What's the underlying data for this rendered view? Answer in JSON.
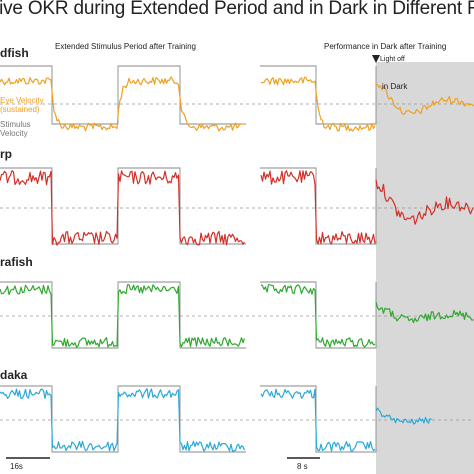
{
  "title": "tive OKR during Extended Period and in Dark in Different Fish Sp",
  "headers": {
    "extended": "Extended Stimulus Period after Training",
    "dark_perf": "Performance in Dark after Training",
    "light_off": "Light off",
    "in_dark": "in Dark"
  },
  "legend": {
    "eye_velocity": [
      "Eye Velocity",
      "(sustained)"
    ],
    "stimulus_velocity": [
      "Stimulus",
      "Velocity"
    ]
  },
  "scalebars": {
    "left": "16s",
    "right": "8 s"
  },
  "colors": {
    "goldfish": "#f0a020",
    "carp": "#d03028",
    "zebrafish": "#30a830",
    "medaka": "#2aa8d8",
    "stimulus": "#8a8a8a",
    "dark_shade": "#d8d8d8"
  },
  "chart_data": {
    "type": "line",
    "title": "tive OKR during Extended Period and in Dark in Different Fish Sp",
    "panels": [
      {
        "name": "dfish",
        "color_key": "goldfish"
      },
      {
        "name": "rp",
        "color_key": "carp"
      },
      {
        "name": "rafish",
        "color_key": "zebrafish"
      },
      {
        "name": "daka",
        "color_key": "medaka"
      }
    ],
    "stimulus_square_wave": true,
    "dark_period_shaded": true
  }
}
